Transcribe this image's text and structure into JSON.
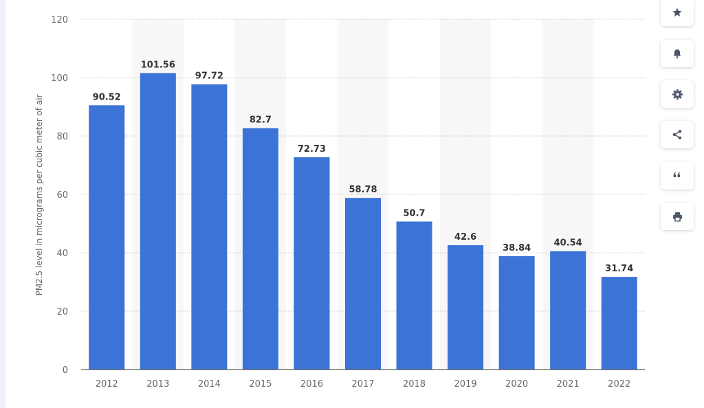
{
  "chart_data": {
    "type": "bar",
    "categories": [
      "2012",
      "2013",
      "2014",
      "2015",
      "2016",
      "2017",
      "2018",
      "2019",
      "2020",
      "2021",
      "2022"
    ],
    "values": [
      90.52,
      101.56,
      97.72,
      82.7,
      72.73,
      58.78,
      50.7,
      42.6,
      38.84,
      40.54,
      31.74
    ],
    "value_labels": [
      "90.52",
      "101.56",
      "97.72",
      "82.7",
      "72.73",
      "58.78",
      "50.7",
      "42.6",
      "38.84",
      "40.54",
      "31.74"
    ],
    "title": "",
    "xlabel": "",
    "ylabel": "PM2.5 level in micrograms per cubic meter of air",
    "ylim": [
      0,
      120
    ],
    "yticks": [
      0,
      20,
      40,
      60,
      80,
      100,
      120
    ],
    "grid": true,
    "bar_color": "#3b73d6",
    "alt_band_color": "#f7f7f7"
  },
  "toolbar": {
    "buttons": [
      {
        "name": "favorite-button",
        "icon": "star-icon"
      },
      {
        "name": "notification-button",
        "icon": "bell-icon"
      },
      {
        "name": "settings-button",
        "icon": "gear-icon"
      },
      {
        "name": "share-button",
        "icon": "share-icon"
      },
      {
        "name": "cite-button",
        "icon": "quote-icon"
      },
      {
        "name": "print-button",
        "icon": "printer-icon"
      }
    ],
    "icon_color": "#4a5568"
  }
}
